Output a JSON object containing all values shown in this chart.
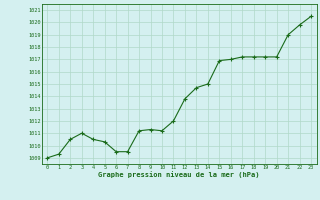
{
  "x": [
    0,
    1,
    2,
    3,
    4,
    5,
    6,
    7,
    8,
    9,
    10,
    11,
    12,
    13,
    14,
    15,
    16,
    17,
    18,
    19,
    20,
    21,
    22,
    23
  ],
  "y": [
    1009.0,
    1009.3,
    1010.5,
    1011.0,
    1010.5,
    1010.3,
    1009.5,
    1009.5,
    1011.2,
    1011.3,
    1011.2,
    1012.0,
    1013.8,
    1014.7,
    1015.0,
    1016.9,
    1017.0,
    1017.2,
    1017.2,
    1017.2,
    1017.2,
    1019.0,
    1019.8,
    1020.5
  ],
  "ylim": [
    1008.5,
    1021.5
  ],
  "yticks": [
    1009,
    1010,
    1011,
    1012,
    1013,
    1014,
    1015,
    1016,
    1017,
    1018,
    1019,
    1020,
    1021
  ],
  "xticks": [
    0,
    1,
    2,
    3,
    4,
    5,
    6,
    7,
    8,
    9,
    10,
    11,
    12,
    13,
    14,
    15,
    16,
    17,
    18,
    19,
    20,
    21,
    22,
    23
  ],
  "xlabel": "Graphe pression niveau de la mer (hPa)",
  "line_color": "#1a6b1a",
  "bg_color": "#d4f0f0",
  "grid_color": "#b0d8c8"
}
